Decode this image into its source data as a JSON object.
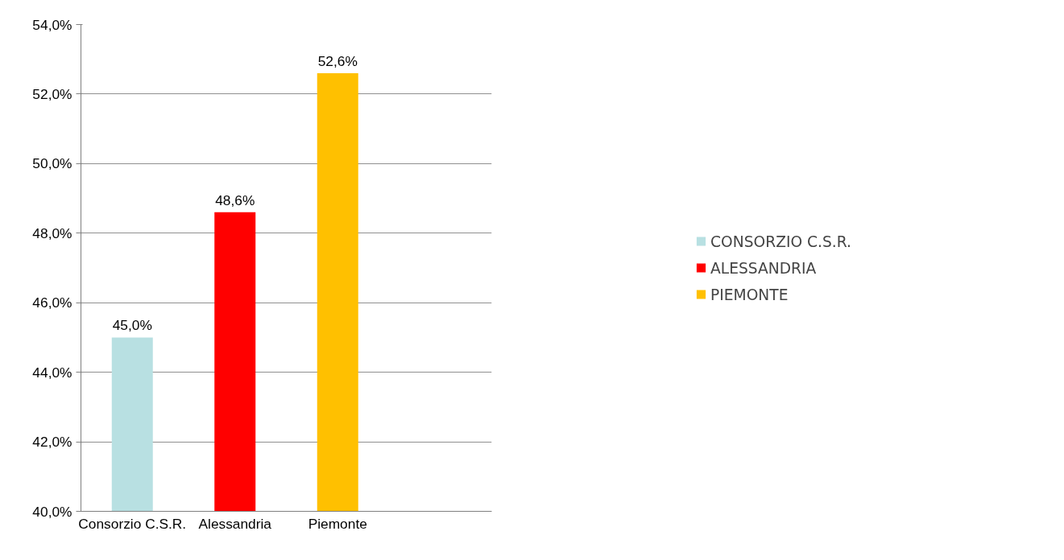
{
  "chart_data": {
    "type": "bar",
    "categories": [
      "Consorzio C.S.R.",
      "Alessandria",
      "Piemonte"
    ],
    "series": [
      {
        "name": "CONSORZIO C.S.R.",
        "color": "#b8e0e2",
        "values": [
          45.0,
          null,
          null
        ],
        "value_labels": [
          "45,0%",
          null,
          null
        ]
      },
      {
        "name": "ALESSANDRIA",
        "color": "#ff0000",
        "values": [
          null,
          48.6,
          null
        ],
        "value_labels": [
          null,
          "48,6%",
          null
        ]
      },
      {
        "name": "PIEMONTE",
        "color": "#ffc000",
        "values": [
          null,
          null,
          52.6
        ],
        "value_labels": [
          null,
          null,
          "52,6%"
        ]
      }
    ],
    "ylim": [
      40,
      54
    ],
    "yticks": [
      {
        "value": 40,
        "label": "40,0%"
      },
      {
        "value": 42,
        "label": "42,0%"
      },
      {
        "value": 44,
        "label": "44,0%"
      },
      {
        "value": 46,
        "label": "46,0%"
      },
      {
        "value": 48,
        "label": "48,0%"
      },
      {
        "value": 50,
        "label": "50,0%"
      },
      {
        "value": 52,
        "label": "52,0%"
      },
      {
        "value": 54,
        "label": "54,0%"
      }
    ],
    "grid": "y",
    "legend": "right"
  }
}
